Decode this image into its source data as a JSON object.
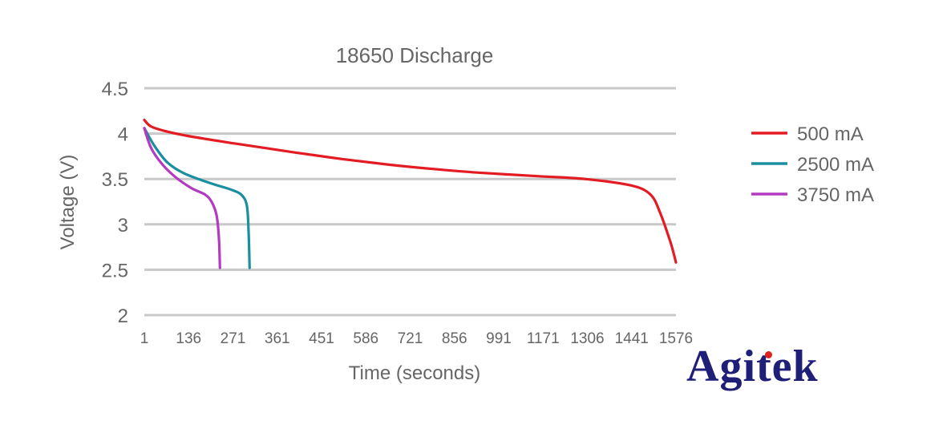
{
  "chart_data": {
    "type": "line",
    "title": "18650 Discharge",
    "xlabel": "Time (seconds)",
    "ylabel": "Voltage (V)",
    "ylim": [
      2,
      4.5
    ],
    "yticks": [
      "2",
      "2.5",
      "3",
      "3.5",
      "4",
      "4.5"
    ],
    "xticks": [
      "1",
      "136",
      "271",
      "361",
      "451",
      "586",
      "721",
      "856",
      "991",
      "1171",
      "1306",
      "1441",
      "1576"
    ],
    "legend_position": "right",
    "series": [
      {
        "name": "500 mA",
        "color": "#e31b23",
        "points": [
          [
            1,
            4.15
          ],
          [
            20,
            4.08
          ],
          [
            60,
            4.03
          ],
          [
            136,
            3.97
          ],
          [
            271,
            3.89
          ],
          [
            361,
            3.84
          ],
          [
            451,
            3.79
          ],
          [
            586,
            3.72
          ],
          [
            721,
            3.66
          ],
          [
            856,
            3.61
          ],
          [
            991,
            3.57
          ],
          [
            1171,
            3.53
          ],
          [
            1306,
            3.5
          ],
          [
            1441,
            3.43
          ],
          [
            1500,
            3.33
          ],
          [
            1530,
            3.12
          ],
          [
            1560,
            2.8
          ],
          [
            1576,
            2.58
          ]
        ]
      },
      {
        "name": "2500 mA",
        "color": "#1a8fa0",
        "points": [
          [
            1,
            4.06
          ],
          [
            30,
            3.87
          ],
          [
            70,
            3.68
          ],
          [
            120,
            3.56
          ],
          [
            200,
            3.45
          ],
          [
            260,
            3.38
          ],
          [
            290,
            3.32
          ],
          [
            305,
            3.2
          ],
          [
            310,
            2.9
          ],
          [
            313,
            2.52
          ]
        ]
      },
      {
        "name": "3750 mA",
        "color": "#b23bc0",
        "points": [
          [
            1,
            4.06
          ],
          [
            20,
            3.85
          ],
          [
            50,
            3.68
          ],
          [
            90,
            3.53
          ],
          [
            140,
            3.4
          ],
          [
            180,
            3.33
          ],
          [
            200,
            3.25
          ],
          [
            215,
            3.1
          ],
          [
            222,
            2.85
          ],
          [
            225,
            2.52
          ]
        ]
      }
    ]
  },
  "brand": {
    "logo_text": "Agitek",
    "text_color": "#1f1f78",
    "dot_color": "#e0201c"
  }
}
